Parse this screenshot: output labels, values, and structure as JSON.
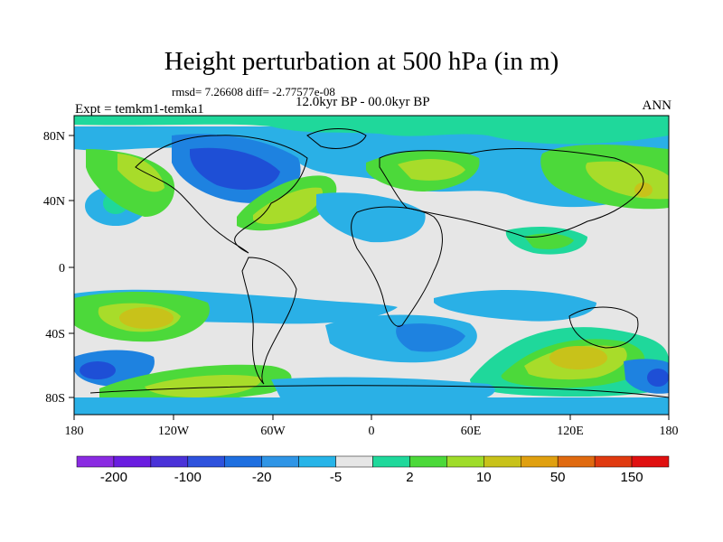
{
  "header": {
    "title": "Height perturbation at 500 hPa (in m)",
    "stats": "rmsd= 7.26608 diff= -2.77577e-08",
    "experiment": "Expt = temkm1-temka1",
    "period": "12.0kyr BP - 00.0kyr BP",
    "season": "ANN"
  },
  "axes": {
    "lat_ticks": [
      "80N",
      "40N",
      "0",
      "40S",
      "80S"
    ],
    "lon_ticks": [
      "180",
      "120W",
      "60W",
      "0",
      "60E",
      "120E",
      "180"
    ]
  },
  "colorbar": {
    "colors": [
      "#8a2be2",
      "#6a1de0",
      "#4a32d8",
      "#2e52dd",
      "#1e6fe0",
      "#2f95e6",
      "#27b4e8",
      "#e6e6e6",
      "#1fd89b",
      "#4cd93a",
      "#9fdc2a",
      "#c8c21a",
      "#e0a010",
      "#e06a10",
      "#e03a10",
      "#e01010"
    ],
    "labels": [
      "-200",
      "-100",
      "-20",
      "-5",
      "2",
      "10",
      "50",
      "150"
    ]
  },
  "fields": {
    "background": "#e6e6e6",
    "blue_light": "#2ab0e6",
    "blue_mid": "#1e82e0",
    "blue_dark": "#1e4fd6",
    "green_light": "#1fd89b",
    "green": "#4cd93a",
    "yellow_green": "#a8dc2a",
    "gold": "#c8c21a"
  }
}
